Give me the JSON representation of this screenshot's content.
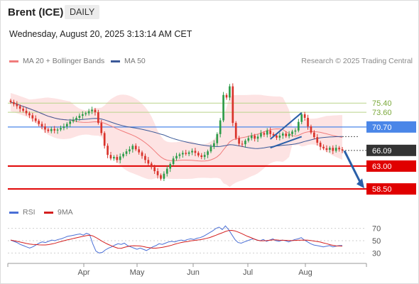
{
  "header": {
    "title": "Brent (ICE)",
    "timeframe": "DAILY",
    "datetime": "Wednesday, August 20, 2025 3:13:14 AM CET",
    "credit": "Research © 2025 Trading Central"
  },
  "legend": {
    "ma20_label": "MA 20 + Bollinger Bands",
    "ma50_label": "MA 50",
    "rsi_label": "RSI",
    "rsi_ma_label": "9MA"
  },
  "colors": {
    "up": "#2e9c4a",
    "down": "#d9332b",
    "band": "#fcd9d9",
    "ma20": "#f07c7c",
    "ma50": "#3b5998",
    "resistance_green": "#7aa83a",
    "pivot_blue": "#4a86e8",
    "support_red": "#e00000",
    "current": "#333333",
    "rsi": "#4a6fd6",
    "rsi_ma": "#d41f1f",
    "arrow": "#2a5fa8"
  },
  "chart_data": [
    {
      "type": "candlestick",
      "title": "Brent (ICE)",
      "timeframe": "DAILY",
      "x_months": [
        "Apr",
        "May",
        "Jun",
        "Jul",
        "Aug"
      ],
      "ylim": [
        56.0,
        82.0
      ],
      "levels": [
        {
          "value": 75.4,
          "label": "75.40",
          "kind": "resistance"
        },
        {
          "value": 73.6,
          "label": "73.60",
          "kind": "resistance"
        },
        {
          "value": 70.7,
          "label": "70.70",
          "kind": "pivot"
        },
        {
          "value": 66.09,
          "label": "66.09",
          "kind": "current"
        },
        {
          "value": 63.0,
          "label": "63.00",
          "kind": "support"
        },
        {
          "value": 58.5,
          "label": "58.50",
          "kind": "support"
        }
      ],
      "series": [
        {
          "name": "MA 20 + Bollinger Bands",
          "kind": "moving_average",
          "period": 20
        },
        {
          "name": "MA 50",
          "kind": "moving_average",
          "period": 50
        }
      ],
      "closes": [
        75.6,
        75.2,
        74.8,
        74.3,
        73.9,
        73.4,
        73.0,
        72.4,
        71.9,
        71.3,
        70.8,
        70.2,
        69.9,
        70.3,
        70.0,
        70.2,
        70.5,
        70.8,
        71.3,
        71.8,
        72.1,
        72.5,
        72.9,
        73.2,
        73.4,
        73.8,
        74.1,
        73.6,
        71.5,
        69.5,
        67.0,
        65.2,
        64.5,
        64.8,
        64.2,
        64.9,
        65.4,
        65.9,
        66.3,
        67.0,
        66.3,
        65.7,
        65.0,
        64.2,
        63.5,
        62.8,
        62.0,
        61.2,
        60.5,
        61.5,
        62.5,
        63.4,
        64.5,
        65.0,
        65.3,
        65.6,
        65.4,
        65.7,
        66.0,
        65.6,
        65.1,
        64.8,
        65.2,
        65.9,
        66.8,
        67.5,
        69.3,
        72.0,
        77.0,
        76.5,
        78.7,
        71.5,
        68.5,
        67.4,
        67.3,
        68.0,
        68.5,
        69.0,
        68.4,
        68.8,
        69.5,
        69.2,
        70.0,
        69.3,
        69.0,
        68.6,
        69.0,
        69.4,
        68.9,
        69.3,
        69.8,
        70.0,
        71.7,
        73.2,
        72.5,
        70.8,
        69.6,
        68.7,
        67.6,
        66.8,
        66.5,
        66.2,
        66.6,
        66.0,
        66.6,
        66.3,
        66.1
      ],
      "rsi": {
        "name": "RSI",
        "ma_name": "9MA",
        "ylim": [
          20,
          80
        ],
        "ticks": [
          70,
          50,
          30
        ],
        "values": [
          51,
          49,
          47,
          44,
          42,
          40,
          38,
          40,
          43,
          46,
          48,
          47,
          49,
          51,
          50,
          52,
          53,
          55,
          57,
          58,
          59,
          60,
          61,
          59,
          62,
          60,
          45,
          33,
          30,
          31,
          35,
          38,
          40,
          43,
          45,
          44,
          46,
          42,
          40,
          38,
          36,
          38,
          36,
          34,
          37,
          40,
          42,
          45,
          44,
          46,
          48,
          49,
          48,
          50,
          51,
          50,
          52,
          53,
          52,
          54,
          55,
          57,
          60,
          63,
          66,
          70,
          72,
          68,
          74,
          68,
          60,
          52,
          47,
          46,
          48,
          50,
          52,
          53,
          51,
          50,
          52,
          49,
          51,
          53,
          50,
          49,
          51,
          50,
          48,
          50,
          52,
          53,
          55,
          51,
          48,
          45,
          43,
          42,
          41,
          40,
          41,
          42,
          40,
          41,
          42,
          42
        ]
      }
    }
  ]
}
